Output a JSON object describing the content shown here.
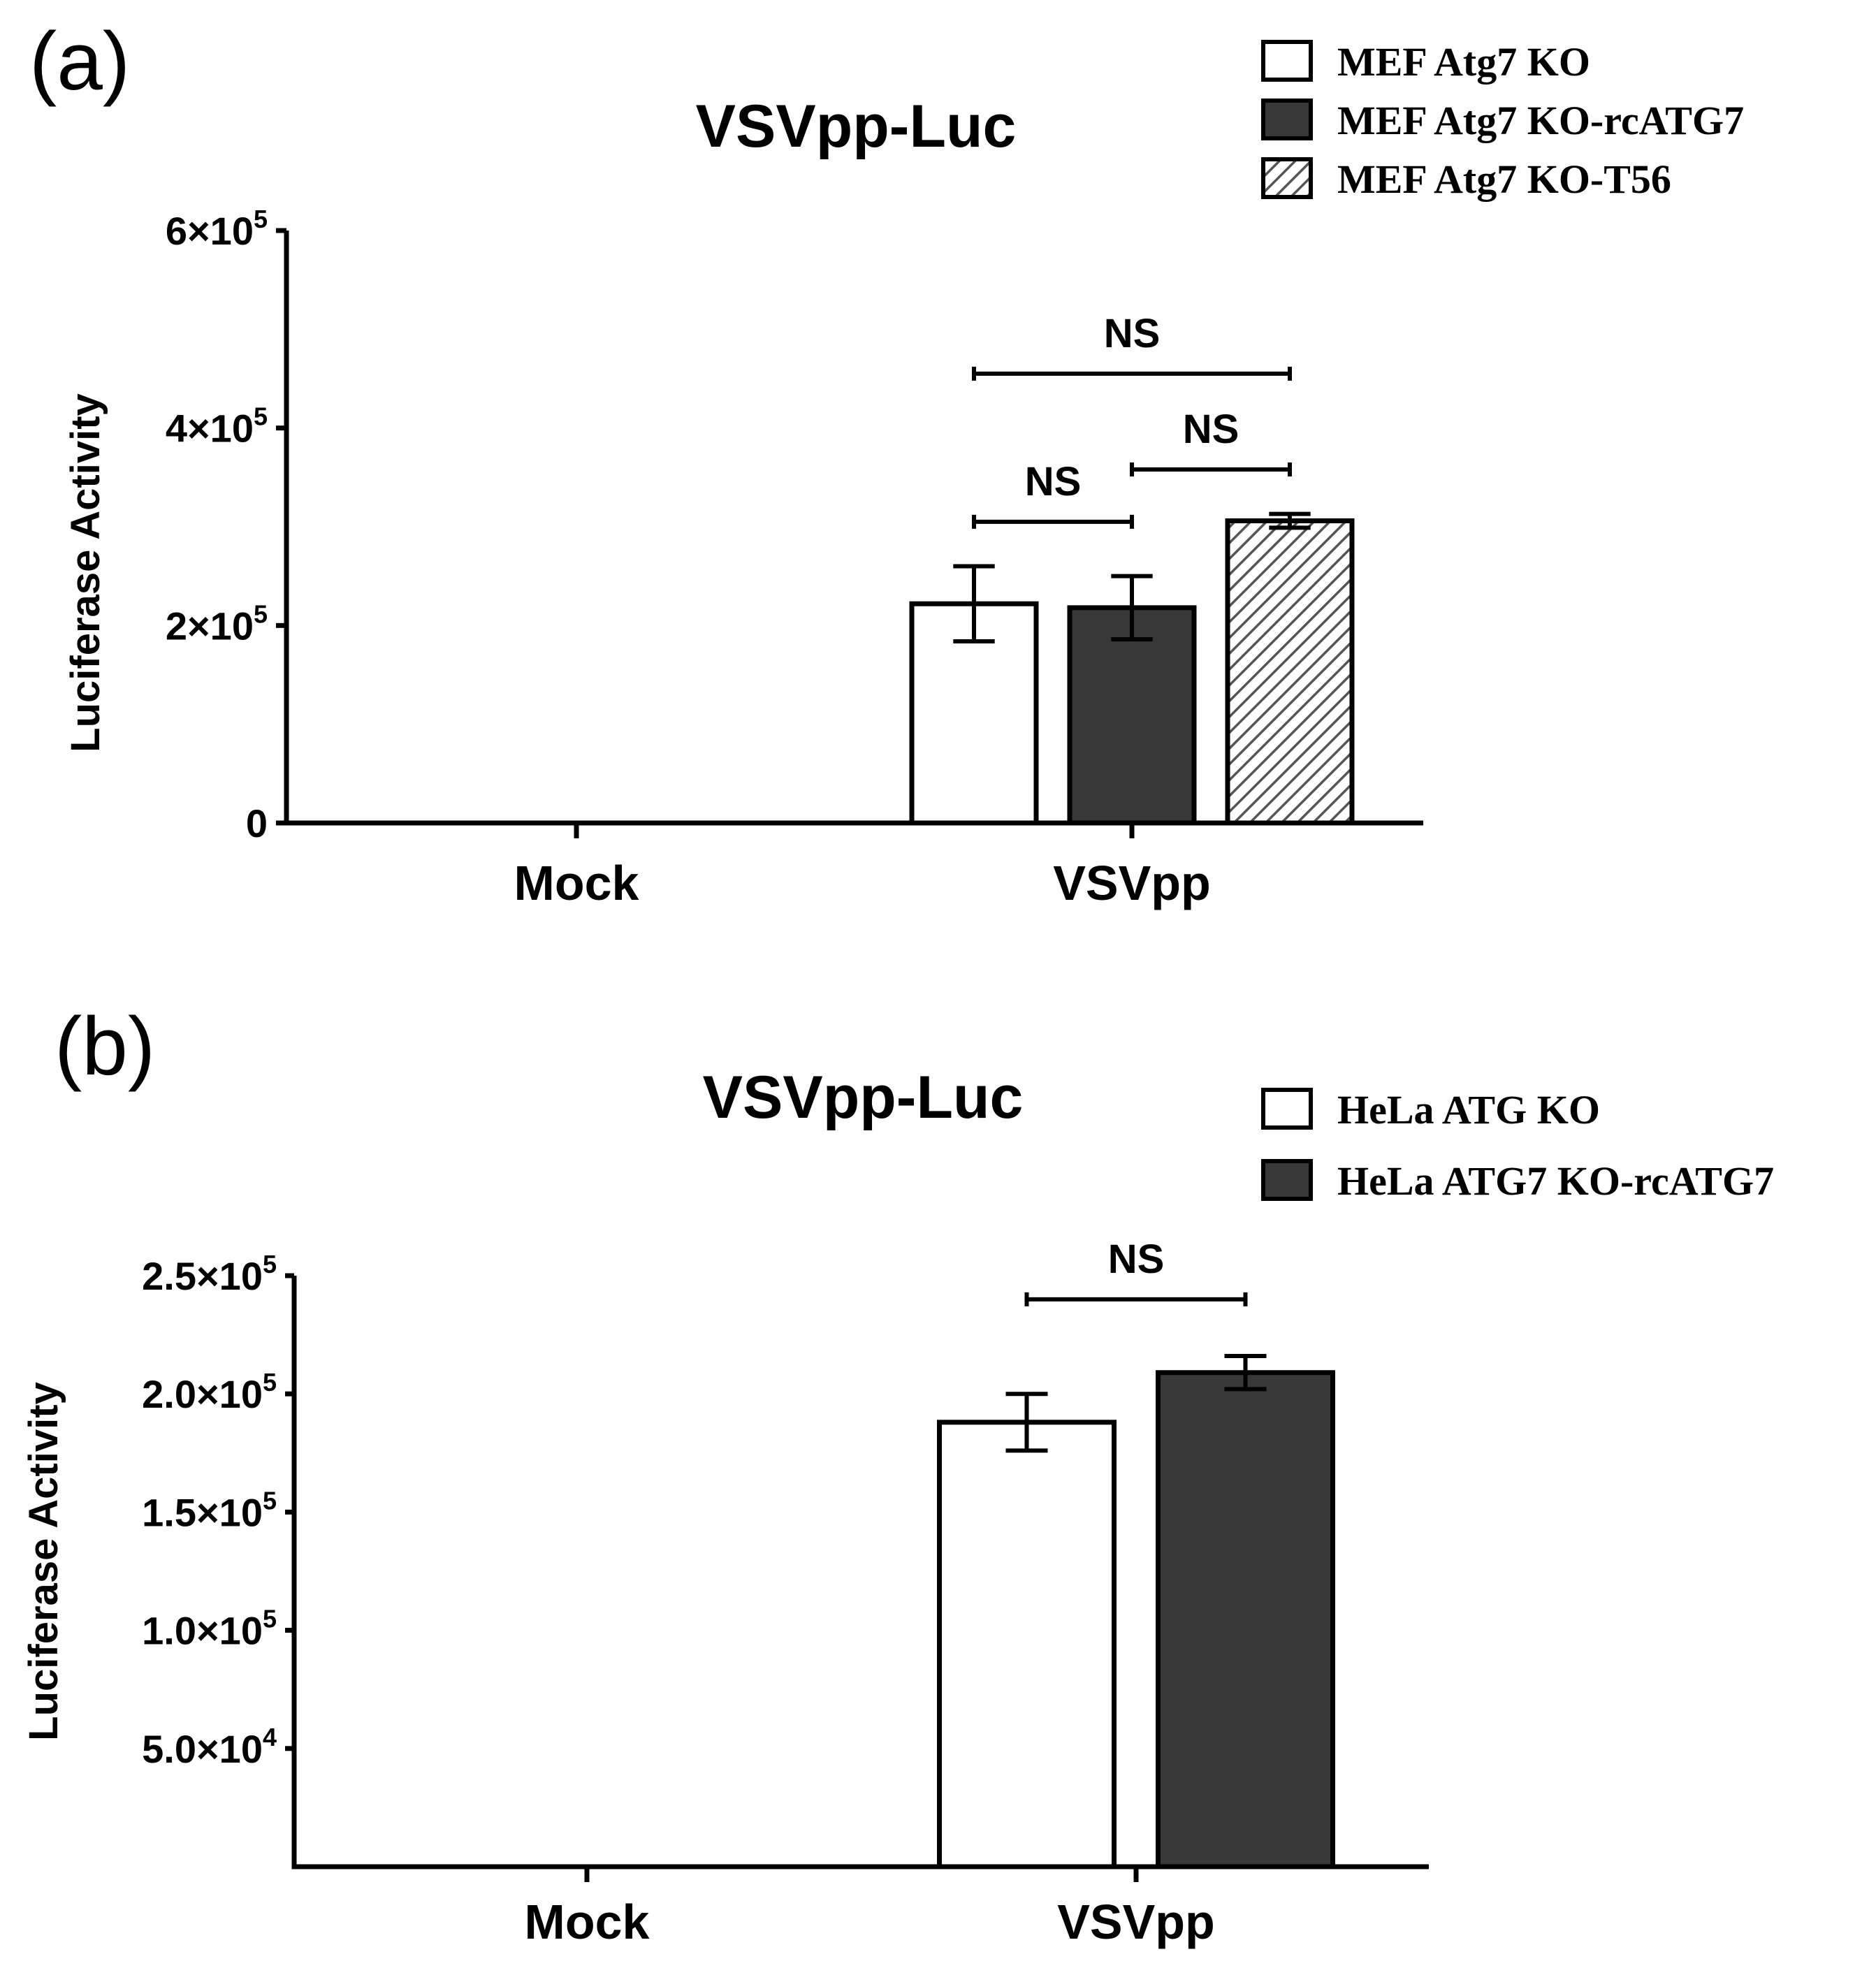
{
  "chart_data": [
    {
      "panel": "(a)",
      "type": "bar",
      "title": "VSVpp-Luc",
      "xlabel": "",
      "ylabel": "Luciferase Activity",
      "ylim": [
        0,
        600000
      ],
      "yticks": [
        {
          "value": 0,
          "mantissa": "0",
          "exp": ""
        },
        {
          "value": 200000,
          "mantissa": "2×10",
          "exp": "5"
        },
        {
          "value": 400000,
          "mantissa": "4×10",
          "exp": "5"
        },
        {
          "value": 600000,
          "mantissa": "6×10",
          "exp": "5"
        }
      ],
      "categories": [
        "Mock",
        "VSVpp"
      ],
      "series": [
        {
          "name": "MEF Atg7 KO",
          "fill": "#ffffff",
          "pattern": "none",
          "values": [
            0,
            222000
          ],
          "errors": [
            0,
            38000
          ]
        },
        {
          "name": "MEF Atg7 KO-rcATG7",
          "fill": "#383838",
          "pattern": "none",
          "values": [
            0,
            218000
          ],
          "errors": [
            0,
            32000
          ]
        },
        {
          "name": "MEF Atg7 KO-T56",
          "fill": "#ffffff",
          "pattern": "hatch",
          "values": [
            0,
            306000
          ],
          "errors": [
            0,
            7000
          ]
        }
      ],
      "significance": [
        {
          "category": 1,
          "from": 0,
          "to": 1,
          "label": "NS",
          "y": 305000
        },
        {
          "category": 1,
          "from": 1,
          "to": 2,
          "label": "NS",
          "y": 358000
        },
        {
          "category": 1,
          "from": 0,
          "to": 2,
          "label": "NS",
          "y": 455000
        }
      ]
    },
    {
      "panel": "(b)",
      "type": "bar",
      "title": "VSVpp-Luc",
      "xlabel": "",
      "ylabel": "Luciferase Activity",
      "ylim": [
        0,
        250000
      ],
      "yticks": [
        {
          "value": 50000,
          "mantissa": "5.0×10",
          "exp": "4"
        },
        {
          "value": 100000,
          "mantissa": "1.0×10",
          "exp": "5"
        },
        {
          "value": 150000,
          "mantissa": "1.5×10",
          "exp": "5"
        },
        {
          "value": 200000,
          "mantissa": "2.0×10",
          "exp": "5"
        },
        {
          "value": 250000,
          "mantissa": "2.5×10",
          "exp": "5"
        }
      ],
      "categories": [
        "Mock",
        "VSVpp"
      ],
      "series": [
        {
          "name": "HeLa ATG KO",
          "fill": "#ffffff",
          "pattern": "none",
          "values": [
            0,
            188000
          ],
          "errors": [
            0,
            12000
          ]
        },
        {
          "name": "HeLa ATG7 KO-rcATG7",
          "fill": "#383838",
          "pattern": "none",
          "values": [
            0,
            209000
          ],
          "errors": [
            0,
            7000
          ]
        }
      ],
      "significance": [
        {
          "category": 1,
          "from": 0,
          "to": 1,
          "label": "NS",
          "y": 240000
        }
      ]
    }
  ]
}
